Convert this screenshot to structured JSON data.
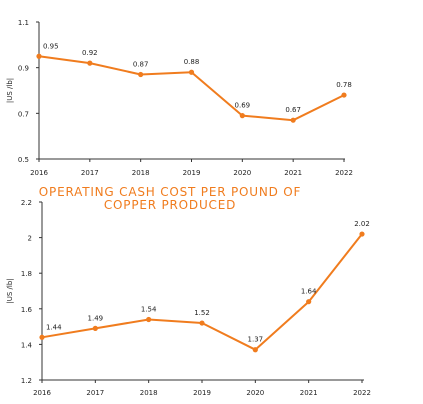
{
  "colors": {
    "line": "#f07c1e",
    "axis": "#333333",
    "text": "#222222",
    "title": "#f07c1e"
  },
  "chart_data": [
    {
      "type": "line",
      "title": "",
      "xlabel": "",
      "ylabel": "|US /lb|",
      "categories": [
        "2016",
        "2017",
        "2018",
        "2019",
        "2020",
        "2021",
        "2022"
      ],
      "series": [
        {
          "values": [
            0.95,
            0.92,
            0.87,
            0.88,
            0.69,
            0.67,
            0.78
          ]
        }
      ],
      "data_labels": [
        "0.95",
        "0.92",
        "0.87",
        "0.88",
        "0.69",
        "0.67",
        "0.78"
      ],
      "ylim": [
        0.5,
        1.1
      ],
      "yticks": [
        "0.5",
        "0.7",
        "0.9",
        "1.1"
      ],
      "grid": false
    },
    {
      "type": "line",
      "title": [
        "OPERATING CASH COST PER POUND OF",
        "COPPER PRODUCED"
      ],
      "xlabel": "",
      "ylabel": "|US /lb|",
      "categories": [
        "2016",
        "2017",
        "2018",
        "2019",
        "2020",
        "2021",
        "2022"
      ],
      "series": [
        {
          "values": [
            1.44,
            1.49,
            1.54,
            1.52,
            1.37,
            1.64,
            2.02
          ]
        }
      ],
      "data_labels": [
        "1.44",
        "1.49",
        "1.54",
        "1.52",
        "1.37",
        "1.64",
        "2.02"
      ],
      "ylim": [
        1.2,
        2.2
      ],
      "yticks": [
        "1.2",
        "1.4",
        "1.6",
        "1.8",
        "2",
        "2.2"
      ],
      "grid": false
    }
  ]
}
